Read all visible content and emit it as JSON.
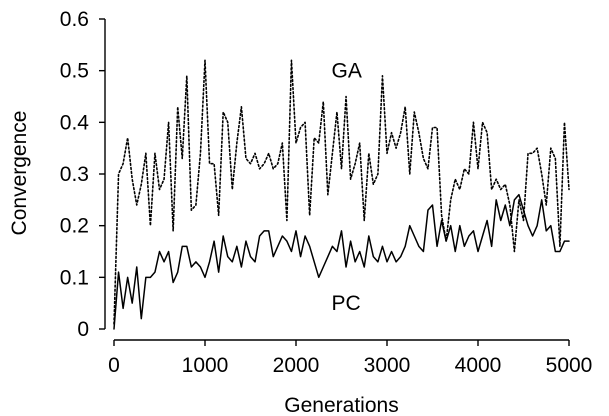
{
  "chart_data": {
    "type": "line",
    "title": "",
    "xlabel": "Generations",
    "ylabel": "Convergence",
    "xlim": [
      0,
      5000
    ],
    "ylim": [
      0,
      0.6
    ],
    "xticks": [
      0,
      1000,
      2000,
      3000,
      4000,
      5000
    ],
    "yticks": [
      0,
      0.1,
      0.2,
      0.3,
      0.4,
      0.5,
      0.6
    ],
    "xtick_labels": [
      "0",
      "1000",
      "2000",
      "3000",
      "4000",
      "5000"
    ],
    "ytick_labels": [
      "0",
      "0.1",
      "0.2",
      "0.3",
      "0.4",
      "0.5",
      "0.6"
    ],
    "grid": false,
    "legend": "none",
    "series": [
      {
        "name": "GA",
        "line_style": "dotted",
        "color": "#000000",
        "x": [
          0,
          50,
          100,
          150,
          200,
          250,
          300,
          350,
          400,
          450,
          500,
          550,
          600,
          650,
          700,
          750,
          800,
          850,
          900,
          950,
          1000,
          1050,
          1100,
          1150,
          1200,
          1250,
          1300,
          1350,
          1400,
          1450,
          1500,
          1550,
          1600,
          1650,
          1700,
          1750,
          1800,
          1850,
          1900,
          1950,
          2000,
          2050,
          2100,
          2150,
          2200,
          2250,
          2300,
          2350,
          2400,
          2450,
          2500,
          2550,
          2600,
          2650,
          2700,
          2750,
          2800,
          2850,
          2900,
          2950,
          3000,
          3050,
          3100,
          3150,
          3200,
          3250,
          3300,
          3350,
          3400,
          3450,
          3500,
          3550,
          3600,
          3650,
          3700,
          3750,
          3800,
          3850,
          3900,
          3950,
          4000,
          4050,
          4100,
          4150,
          4200,
          4250,
          4300,
          4350,
          4400,
          4450,
          4500,
          4550,
          4600,
          4650,
          4700,
          4750,
          4800,
          4850,
          4900,
          4950,
          5000
        ],
        "y": [
          0.01,
          0.3,
          0.32,
          0.37,
          0.29,
          0.24,
          0.28,
          0.34,
          0.2,
          0.34,
          0.27,
          0.29,
          0.4,
          0.19,
          0.43,
          0.33,
          0.49,
          0.23,
          0.24,
          0.34,
          0.52,
          0.32,
          0.32,
          0.22,
          0.42,
          0.4,
          0.27,
          0.36,
          0.43,
          0.33,
          0.32,
          0.34,
          0.31,
          0.32,
          0.34,
          0.31,
          0.32,
          0.36,
          0.21,
          0.52,
          0.36,
          0.39,
          0.4,
          0.22,
          0.37,
          0.36,
          0.44,
          0.26,
          0.34,
          0.42,
          0.31,
          0.45,
          0.29,
          0.32,
          0.36,
          0.21,
          0.34,
          0.28,
          0.3,
          0.49,
          0.34,
          0.38,
          0.35,
          0.38,
          0.43,
          0.3,
          0.42,
          0.38,
          0.33,
          0.31,
          0.39,
          0.39,
          0.22,
          0.17,
          0.25,
          0.29,
          0.27,
          0.31,
          0.3,
          0.4,
          0.31,
          0.4,
          0.38,
          0.27,
          0.29,
          0.27,
          0.28,
          0.24,
          0.15,
          0.25,
          0.21,
          0.34,
          0.34,
          0.35,
          0.3,
          0.24,
          0.35,
          0.33,
          0.16,
          0.4,
          0.27
        ]
      },
      {
        "name": "PC",
        "line_style": "solid",
        "color": "#000000",
        "x": [
          0,
          50,
          100,
          150,
          200,
          250,
          300,
          350,
          400,
          450,
          500,
          550,
          600,
          650,
          700,
          750,
          800,
          850,
          900,
          950,
          1000,
          1050,
          1100,
          1150,
          1200,
          1250,
          1300,
          1350,
          1400,
          1450,
          1500,
          1550,
          1600,
          1650,
          1700,
          1750,
          1800,
          1850,
          1900,
          1950,
          2000,
          2050,
          2100,
          2150,
          2200,
          2250,
          2300,
          2350,
          2400,
          2450,
          2500,
          2550,
          2600,
          2650,
          2700,
          2750,
          2800,
          2850,
          2900,
          2950,
          3000,
          3050,
          3100,
          3150,
          3200,
          3250,
          3300,
          3350,
          3400,
          3450,
          3500,
          3550,
          3600,
          3650,
          3700,
          3750,
          3800,
          3850,
          3900,
          3950,
          4000,
          4050,
          4100,
          4150,
          4200,
          4250,
          4300,
          4350,
          4400,
          4450,
          4500,
          4550,
          4600,
          4650,
          4700,
          4750,
          4800,
          4850,
          4900,
          4950,
          5000
        ],
        "y": [
          0.0,
          0.11,
          0.04,
          0.1,
          0.05,
          0.12,
          0.02,
          0.1,
          0.1,
          0.11,
          0.15,
          0.13,
          0.15,
          0.09,
          0.11,
          0.16,
          0.16,
          0.12,
          0.13,
          0.12,
          0.1,
          0.13,
          0.17,
          0.11,
          0.18,
          0.14,
          0.13,
          0.16,
          0.12,
          0.17,
          0.14,
          0.13,
          0.18,
          0.19,
          0.19,
          0.14,
          0.16,
          0.18,
          0.17,
          0.15,
          0.19,
          0.14,
          0.18,
          0.16,
          0.13,
          0.1,
          0.12,
          0.14,
          0.16,
          0.15,
          0.19,
          0.12,
          0.17,
          0.13,
          0.15,
          0.12,
          0.18,
          0.14,
          0.13,
          0.16,
          0.13,
          0.15,
          0.13,
          0.14,
          0.16,
          0.2,
          0.18,
          0.16,
          0.15,
          0.23,
          0.24,
          0.16,
          0.21,
          0.17,
          0.2,
          0.15,
          0.2,
          0.16,
          0.18,
          0.19,
          0.15,
          0.18,
          0.21,
          0.16,
          0.25,
          0.21,
          0.24,
          0.2,
          0.25,
          0.26,
          0.23,
          0.2,
          0.18,
          0.2,
          0.25,
          0.19,
          0.2,
          0.15,
          0.15,
          0.17,
          0.17
        ]
      }
    ],
    "annotations": [
      {
        "text": "GA",
        "x": 2500,
        "y": 0.5
      },
      {
        "text": "PC",
        "x": 2500,
        "y": 0.05
      }
    ]
  }
}
